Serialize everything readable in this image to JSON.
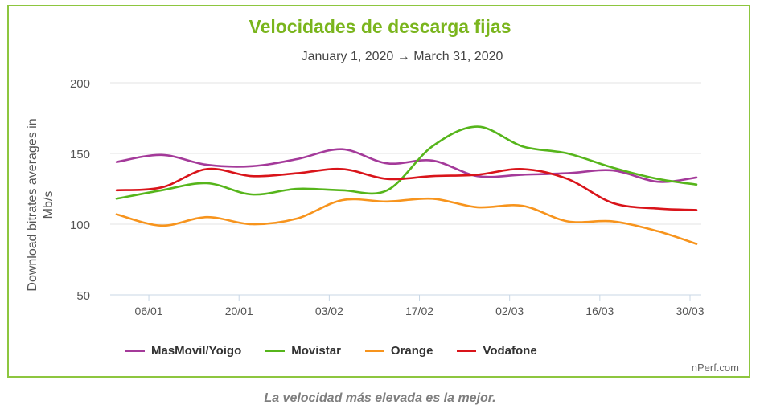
{
  "chart_data": {
    "type": "line",
    "title": "Velocidades de descarga fijas",
    "subtitle": "January 1, 2020 → March 31, 2020",
    "ylabel": "Download bitrates averages in Mb/s",
    "xlabel": "",
    "ylim": [
      50,
      200
    ],
    "yticks": [
      50,
      100,
      150,
      200
    ],
    "xlim": [
      1,
      91
    ],
    "xticks": [
      {
        "day": 6,
        "label": "06/01"
      },
      {
        "day": 20,
        "label": "20/01"
      },
      {
        "day": 34,
        "label": "03/02"
      },
      {
        "day": 48,
        "label": "17/02"
      },
      {
        "day": 62,
        "label": "02/03"
      },
      {
        "day": 76,
        "label": "16/03"
      },
      {
        "day": 90,
        "label": "30/03"
      }
    ],
    "grid": true,
    "legend_position": "bottom",
    "x_days": [
      1,
      8,
      15,
      22,
      29,
      36,
      43,
      50,
      57,
      64,
      71,
      78,
      85,
      91
    ],
    "series": [
      {
        "name": "MasMovil/Yoigo",
        "color": "#a43a9a",
        "values": [
          144,
          149,
          142,
          141,
          146,
          153,
          143,
          145,
          134,
          135,
          136,
          138,
          130,
          133
        ]
      },
      {
        "name": "Movistar",
        "color": "#56b51b",
        "values": [
          118,
          124,
          129,
          121,
          125,
          124,
          124,
          155,
          169,
          155,
          150,
          140,
          132,
          128
        ]
      },
      {
        "name": "Orange",
        "color": "#f7941d",
        "values": [
          107,
          99,
          105,
          100,
          104,
          117,
          116,
          118,
          112,
          113,
          102,
          102,
          95,
          86
        ]
      },
      {
        "name": "Vodafone",
        "color": "#d9141a",
        "values": [
          124,
          126,
          139,
          134,
          136,
          139,
          132,
          134,
          135,
          139,
          132,
          115,
          111,
          110
        ]
      }
    ]
  },
  "footer": {
    "credit": "nPerf.com",
    "note": "La velocidad más elevada es la mejor."
  }
}
